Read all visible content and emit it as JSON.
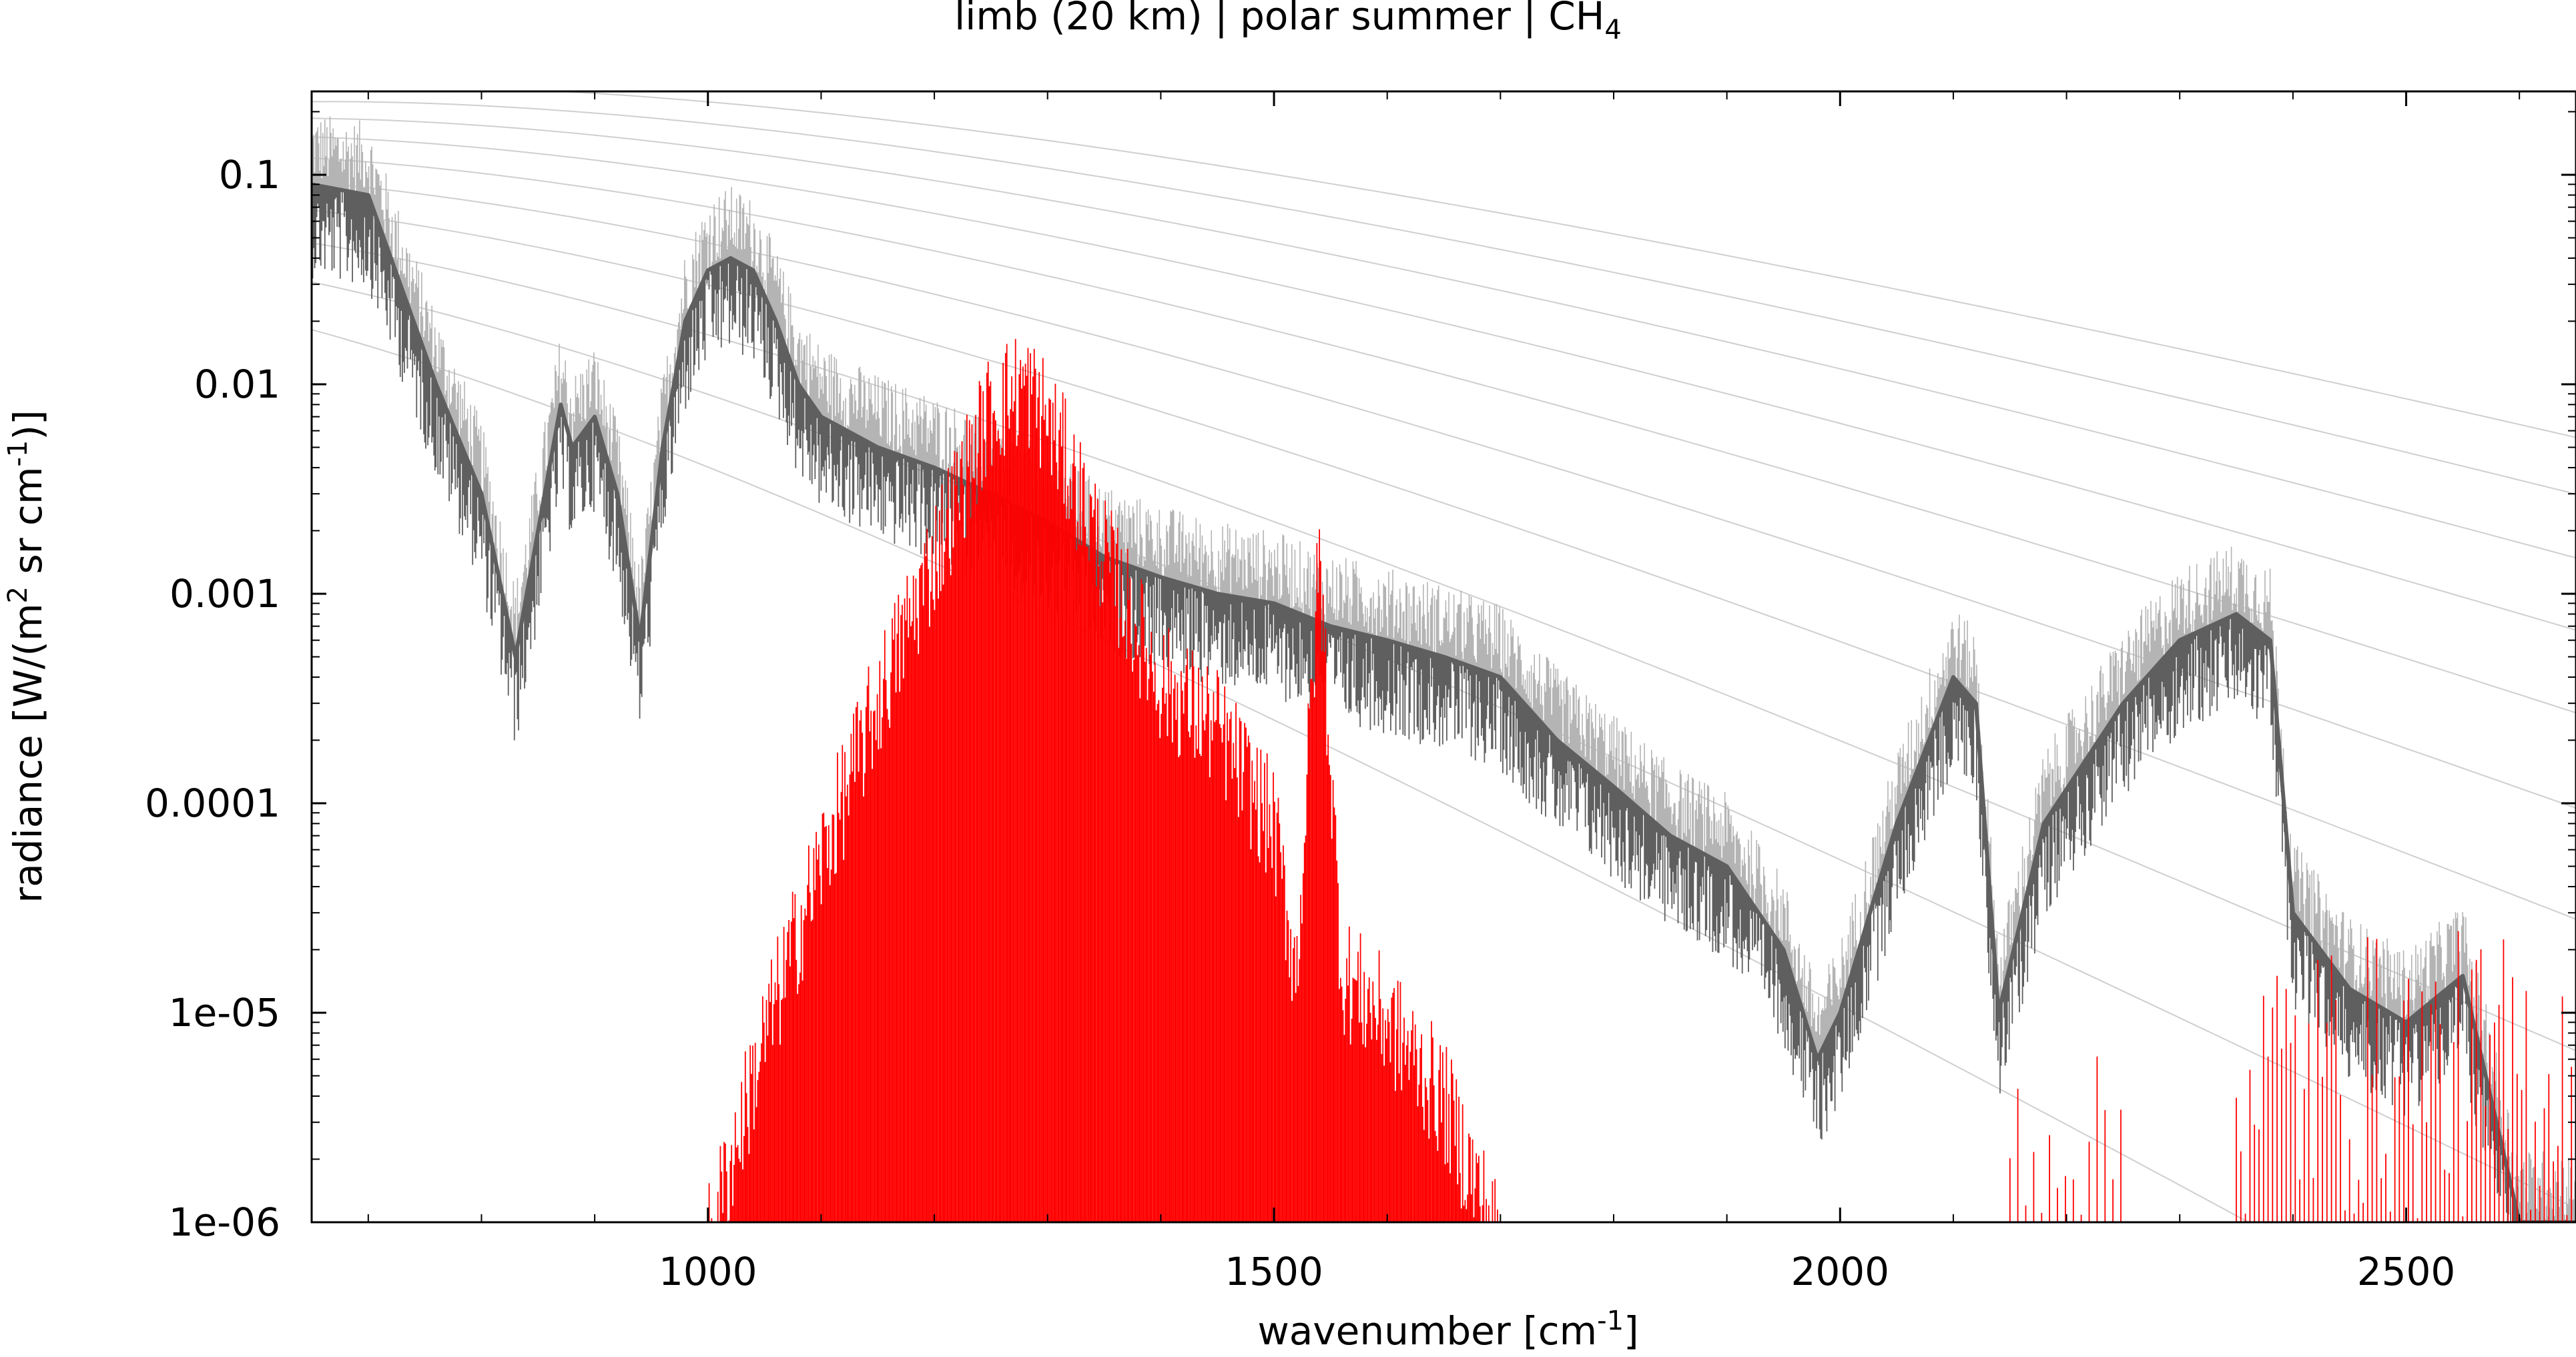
{
  "chart_data": {
    "type": "line",
    "title": {
      "prefix": "limb (20 km) | polar summer | CH",
      "subscript": "4"
    },
    "xlabel": {
      "prefix": "wavenumber [cm",
      "superscript": "-1",
      "suffix": "]"
    },
    "ylabel": {
      "p1": "radiance [W/(m",
      "s1": "2",
      "p2": " sr cm",
      "s2": "-1",
      "p3": ")]"
    },
    "xlim": [
      650,
      2650
    ],
    "ylim": [
      1e-06,
      0.25
    ],
    "yscale": "log",
    "xticks": [
      1000,
      1500,
      2000,
      2500
    ],
    "xtick_labels": [
      "1000",
      "1500",
      "2000",
      "2500"
    ],
    "yticks": [
      0.1,
      0.01,
      0.001,
      0.0001,
      1e-05,
      1e-06
    ],
    "ytick_labels": [
      "0.1",
      "0.01",
      "0.001",
      "0.0001",
      "1e-05",
      "1e-06"
    ],
    "colors": {
      "total": "#5f5f5f",
      "total_upper": "#b4b4b4",
      "ch4": "#ff0000",
      "planck": "#cfcfcf"
    },
    "series": [
      {
        "role": "total-radiance",
        "x": [
          650,
          700,
          740,
          760,
          800,
          830,
          850,
          870,
          880,
          900,
          920,
          940,
          960,
          980,
          1000,
          1020,
          1040,
          1060,
          1080,
          1100,
          1150,
          1200,
          1250,
          1300,
          1350,
          1400,
          1450,
          1500,
          1550,
          1600,
          1650,
          1700,
          1750,
          1800,
          1850,
          1900,
          1950,
          1980,
          2000,
          2050,
          2100,
          2120,
          2140,
          2180,
          2250,
          2300,
          2350,
          2380,
          2400,
          2450,
          2500,
          2550,
          2600,
          2650
        ],
        "y": [
          0.09,
          0.08,
          0.02,
          0.01,
          0.003,
          0.0005,
          0.002,
          0.008,
          0.005,
          0.007,
          0.003,
          0.0006,
          0.005,
          0.02,
          0.035,
          0.04,
          0.035,
          0.02,
          0.01,
          0.007,
          0.005,
          0.004,
          0.003,
          0.0022,
          0.0015,
          0.0012,
          0.001,
          0.0009,
          0.0007,
          0.0006,
          0.0005,
          0.0004,
          0.0002,
          0.00012,
          7e-05,
          5e-05,
          2e-05,
          6e-06,
          1e-05,
          8e-05,
          0.0004,
          0.0003,
          1e-05,
          8e-05,
          0.0003,
          0.0006,
          0.0008,
          0.0006,
          3e-05,
          1.3e-05,
          9e-06,
          1.5e-05,
          1e-06,
          1e-06
        ]
      },
      {
        "role": "ch4-contribution",
        "x": [
          1000,
          1050,
          1100,
          1150,
          1200,
          1250,
          1280,
          1300,
          1320,
          1350,
          1400,
          1450,
          1500,
          1520,
          1540,
          1560,
          1600,
          1650,
          1700
        ],
        "y": [
          1e-06,
          1e-05,
          7e-05,
          0.0004,
          0.002,
          0.01,
          0.013,
          0.009,
          0.005,
          0.002,
          0.0005,
          0.0003,
          0.0001,
          2e-05,
          0.002,
          2e-05,
          1.2e-05,
          5e-06,
          1e-06
        ]
      }
    ],
    "planck_temperatures_K": [
      180,
      200,
      220,
      240,
      260,
      280,
      300,
      320,
      340,
      360
    ],
    "grid": false,
    "legend": "none"
  }
}
